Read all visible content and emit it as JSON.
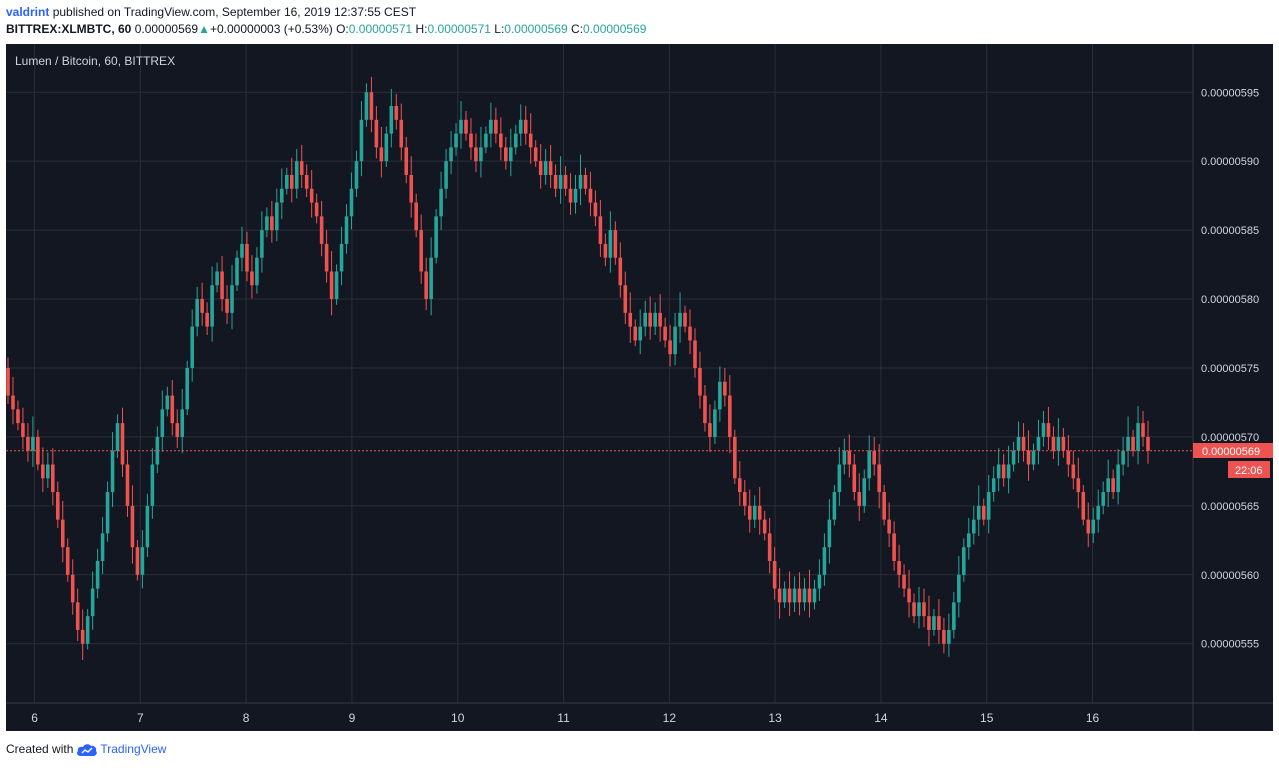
{
  "header": {
    "author": "valdrint",
    "published_text": "published on TradingView.com, September 16, 2019 12:37:55 CEST",
    "symbol": "BITTREX:XLMBTC, 60",
    "last": "0.00000569",
    "change_arrow": "▲",
    "change": "+0.00000003 (+0.53%)",
    "o_label": "O:",
    "o_value": "0.00000571",
    "h_label": "H:",
    "h_value": "0.00000571",
    "l_label": "L:",
    "l_value": "0.00000569",
    "c_label": "C:",
    "c_value": "0.00000569"
  },
  "footer": {
    "created_with": "Created with",
    "brand": "TradingView",
    "logo_icon": "tradingview-cloud-icon"
  },
  "colors": {
    "background": "#131722",
    "grid": "#2a2e39",
    "up": "#26a69a",
    "down": "#ef5350",
    "text": "#d1d4dc"
  },
  "chart_data": {
    "type": "candlestick",
    "title": "Lumen / Bitcoin, 60, BITTREX",
    "x_tick_labels": [
      "6",
      "7",
      "8",
      "9",
      "10",
      "11",
      "12",
      "13",
      "14",
      "15",
      "16"
    ],
    "y_tick_labels": [
      "0.00000595",
      "0.00000590",
      "0.00000585",
      "0.00000580",
      "0.00000575",
      "0.00000570",
      "0.00000565",
      "0.00000560",
      "0.00000555"
    ],
    "y_tick_values": [
      5.95,
      5.9,
      5.85,
      5.8,
      5.75,
      5.7,
      5.65,
      5.6,
      5.55
    ],
    "y_unit_note": "values in 1e-6 BTC",
    "y_range": [
      5.507,
      5.985
    ],
    "day_range": [
      5.73,
      16.95
    ],
    "current_price_label": "0.00000569",
    "current_price_value": 5.69,
    "countdown_label": "22:06",
    "grid": true,
    "closes": [
      5.73,
      5.72,
      5.71,
      5.7,
      5.69,
      5.7,
      5.68,
      5.67,
      5.68,
      5.66,
      5.64,
      5.62,
      5.6,
      5.58,
      5.56,
      5.55,
      5.57,
      5.59,
      5.61,
      5.63,
      5.66,
      5.69,
      5.71,
      5.68,
      5.65,
      5.62,
      5.6,
      5.62,
      5.65,
      5.68,
      5.7,
      5.72,
      5.73,
      5.71,
      5.7,
      5.72,
      5.75,
      5.78,
      5.8,
      5.79,
      5.78,
      5.81,
      5.82,
      5.8,
      5.79,
      5.81,
      5.83,
      5.84,
      5.82,
      5.81,
      5.83,
      5.85,
      5.86,
      5.85,
      5.87,
      5.88,
      5.89,
      5.88,
      5.9,
      5.89,
      5.88,
      5.87,
      5.86,
      5.84,
      5.82,
      5.8,
      5.82,
      5.84,
      5.86,
      5.88,
      5.9,
      5.93,
      5.95,
      5.93,
      5.91,
      5.9,
      5.92,
      5.94,
      5.93,
      5.91,
      5.89,
      5.87,
      5.85,
      5.82,
      5.8,
      5.83,
      5.86,
      5.88,
      5.9,
      5.91,
      5.92,
      5.93,
      5.92,
      5.91,
      5.9,
      5.91,
      5.92,
      5.93,
      5.92,
      5.91,
      5.9,
      5.91,
      5.92,
      5.93,
      5.92,
      5.91,
      5.9,
      5.89,
      5.9,
      5.89,
      5.88,
      5.89,
      5.88,
      5.87,
      5.88,
      5.89,
      5.88,
      5.87,
      5.86,
      5.84,
      5.83,
      5.85,
      5.83,
      5.81,
      5.79,
      5.78,
      5.77,
      5.78,
      5.79,
      5.78,
      5.79,
      5.78,
      5.77,
      5.76,
      5.78,
      5.79,
      5.78,
      5.77,
      5.75,
      5.73,
      5.71,
      5.7,
      5.72,
      5.74,
      5.73,
      5.7,
      5.67,
      5.66,
      5.65,
      5.64,
      5.65,
      5.64,
      5.63,
      5.61,
      5.59,
      5.58,
      5.59,
      5.58,
      5.59,
      5.58,
      5.59,
      5.58,
      5.59,
      5.6,
      5.62,
      5.64,
      5.66,
      5.68,
      5.69,
      5.68,
      5.66,
      5.65,
      5.67,
      5.69,
      5.68,
      5.66,
      5.64,
      5.63,
      5.61,
      5.6,
      5.59,
      5.58,
      5.57,
      5.58,
      5.57,
      5.56,
      5.57,
      5.56,
      5.55,
      5.56,
      5.58,
      5.6,
      5.62,
      5.63,
      5.64,
      5.65,
      5.64,
      5.66,
      5.67,
      5.68,
      5.67,
      5.68,
      5.69,
      5.7,
      5.69,
      5.68,
      5.69,
      5.7,
      5.71,
      5.7,
      5.69,
      5.7,
      5.69,
      5.68,
      5.67,
      5.66,
      5.64,
      5.63,
      5.64,
      5.65,
      5.66,
      5.67,
      5.66,
      5.68,
      5.69,
      5.7,
      5.69,
      5.71,
      5.7,
      5.69
    ]
  }
}
